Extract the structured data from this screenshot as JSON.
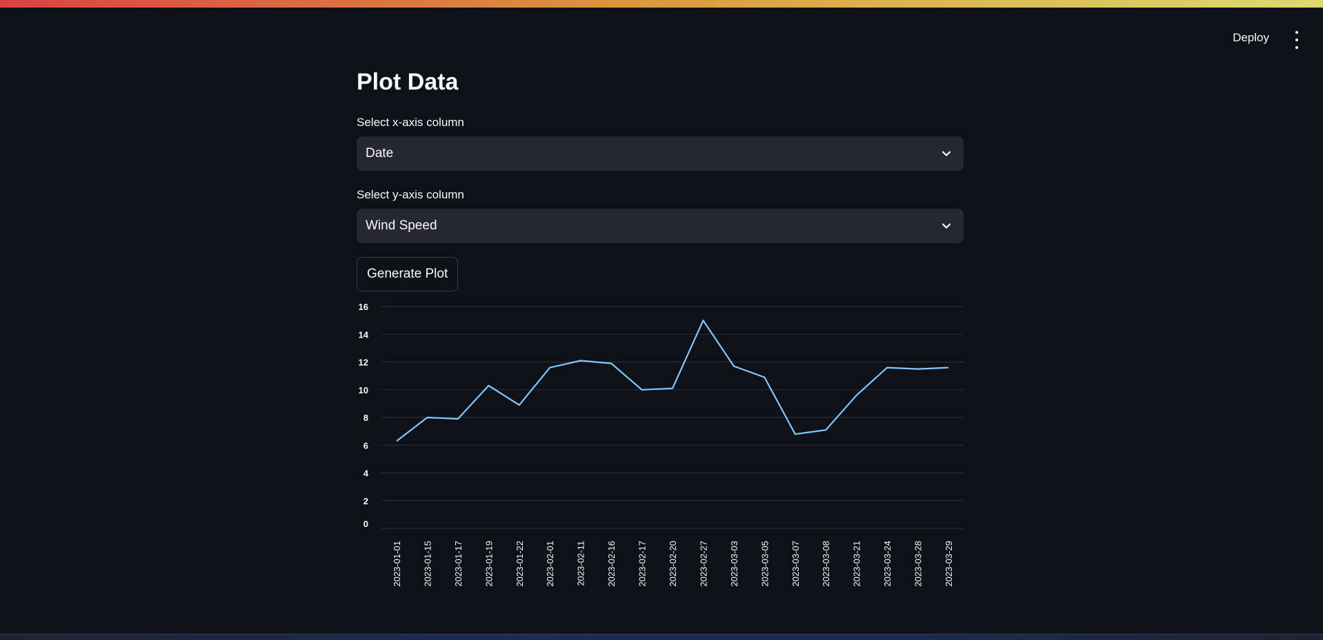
{
  "header": {
    "deploy_label": "Deploy",
    "menu_icon": "kebab-menu-icon"
  },
  "main": {
    "title": "Plot Data",
    "x_select": {
      "label": "Select x-axis column",
      "value": "Date"
    },
    "y_select": {
      "label": "Select y-axis column",
      "value": "Wind Speed"
    },
    "generate_label": "Generate Plot"
  },
  "colors": {
    "background": "#0e1117",
    "select_bg": "#262730",
    "line": "#83c9ff",
    "grid": "#31333f"
  },
  "chart_data": {
    "type": "line",
    "title": "",
    "xlabel": "",
    "ylabel": "",
    "x": [
      "2023-01-01",
      "2023-01-15",
      "2023-01-17",
      "2023-01-19",
      "2023-01-22",
      "2023-02-01",
      "2023-02-11",
      "2023-02-16",
      "2023-02-17",
      "2023-02-20",
      "2023-02-27",
      "2023-03-03",
      "2023-03-05",
      "2023-03-07",
      "2023-03-08",
      "2023-03-21",
      "2023-03-24",
      "2023-03-28",
      "2023-03-29"
    ],
    "series": [
      {
        "values": [
          6.3,
          8.0,
          7.9,
          10.3,
          8.9,
          11.6,
          12.1,
          11.9,
          10.0,
          10.1,
          15.0,
          11.7,
          10.9,
          6.8,
          7.1,
          9.6,
          11.6,
          11.5,
          11.6
        ]
      }
    ],
    "yticks": [
      "0",
      "2",
      "4",
      "6",
      "8",
      "10",
      "12",
      "14",
      "16"
    ],
    "ylim": [
      0,
      16
    ],
    "grid": true,
    "legend": "none"
  }
}
